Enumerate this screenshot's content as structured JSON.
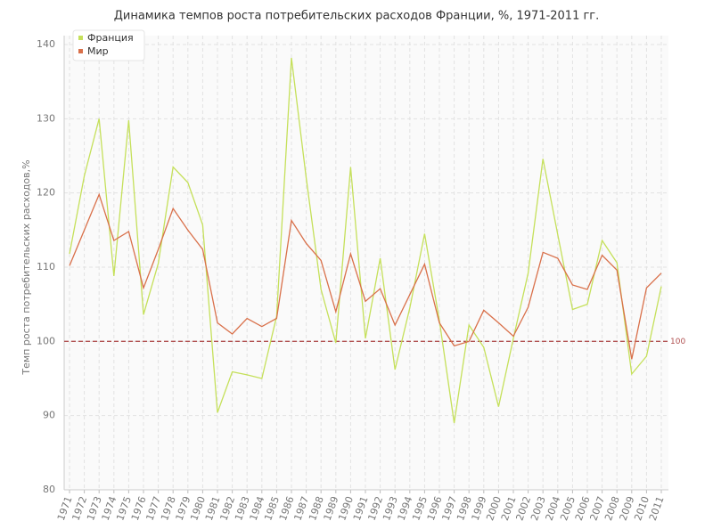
{
  "chart_data": {
    "type": "line",
    "title": "Динамика темпов роста потребительских расходов Франции, %, 1971-2011 гг.",
    "y_label": "Темп роста потребительских расходов,%",
    "x": [
      1971,
      1972,
      1973,
      1974,
      1975,
      1976,
      1977,
      1978,
      1979,
      1980,
      1981,
      1982,
      1983,
      1984,
      1985,
      1986,
      1987,
      1988,
      1989,
      1990,
      1991,
      1992,
      1993,
      1994,
      1995,
      1996,
      1997,
      1998,
      1999,
      2000,
      2001,
      2002,
      2003,
      2004,
      2005,
      2006,
      2007,
      2008,
      2009,
      2010,
      2011
    ],
    "xlim": [
      1971,
      2011
    ],
    "series": [
      {
        "name": "Франция",
        "color": "#c5e05a",
        "values": [
          111.8,
          122.3,
          130,
          108.8,
          129.8,
          103.6,
          110.5,
          123.5,
          121.4,
          115.7,
          90.4,
          95.9,
          95.5,
          95,
          103.4,
          138.2,
          122,
          107,
          99.8,
          123.5,
          100.4,
          111.2,
          96.2,
          104.5,
          114.5,
          102.8,
          89,
          102.2,
          99.2,
          91.2,
          100.4,
          109.2,
          124.6,
          114.4,
          104.3,
          105,
          113.6,
          110.6,
          95.6,
          98,
          107.4
        ]
      },
      {
        "name": "Мир",
        "color": "#d9704a",
        "values": [
          110.2,
          115,
          119.8,
          113.6,
          114.8,
          107.2,
          112.4,
          117.9,
          115,
          112.4,
          102.5,
          101,
          103.1,
          102,
          103.1,
          116.3,
          113.2,
          110.9,
          104,
          111.8,
          105.4,
          107.1,
          102.2,
          106.3,
          110.4,
          102.5,
          99.4,
          100,
          104.2,
          102.5,
          100.7,
          104.6,
          112,
          111.2,
          107.6,
          107,
          111.6,
          109.6,
          97.6,
          107.2,
          109.2
        ]
      }
    ],
    "ylim": [
      80,
      140
    ],
    "yticks": [
      80,
      90,
      100,
      110,
      120,
      130,
      140
    ],
    "reference_line": {
      "value": 100,
      "color": "#b05050"
    },
    "grid": true,
    "legend": "top-left"
  }
}
